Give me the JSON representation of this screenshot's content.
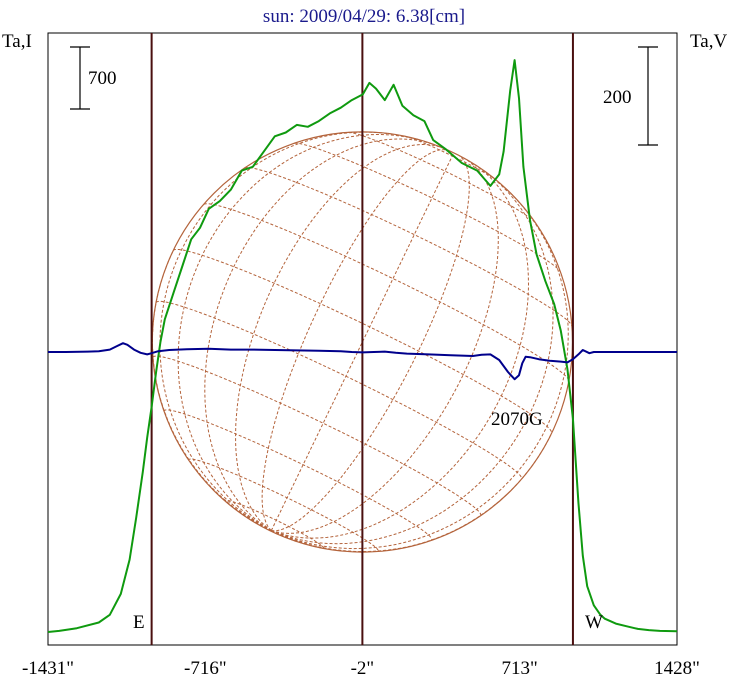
{
  "chart_data": {
    "type": "line",
    "title": "sun: 2009/04/29: 6.38[cm]",
    "left_axis_label": "Ta,I",
    "right_axis_label": "Ta,V",
    "scale_bar_left": "700",
    "scale_bar_right": "200",
    "xlim": [
      -1431,
      1428
    ],
    "x_ticks": [
      -1431,
      -716,
      -2,
      713,
      1428
    ],
    "x_tick_labels": [
      "-1431\"",
      "-716\"",
      "-2\"",
      "713\"",
      "1428\""
    ],
    "vertical_lines_x": [
      -960,
      -2,
      955
    ],
    "limb_labels": {
      "east": "E",
      "west": "W"
    },
    "annotations": [
      {
        "text": "2070G",
        "x": 700
      }
    ],
    "disk": {
      "center_x": -2,
      "radius": 955,
      "grid": "heliographic"
    },
    "colors": {
      "intensity": "#0f9a0f",
      "polarization": "#00008c",
      "disk": "#b4643c",
      "markers": "#4a0f0f",
      "title": "#1a1a8c"
    },
    "series": [
      {
        "name": "Ta,I",
        "color": "#0f9a0f",
        "x": [
          -1431,
          -1380,
          -1300,
          -1200,
          -1150,
          -1100,
          -1060,
          -1030,
          -1000,
          -980,
          -960,
          -940,
          -920,
          -900,
          -860,
          -820,
          -780,
          -740,
          -700,
          -650,
          -600,
          -550,
          -500,
          -450,
          -400,
          -350,
          -300,
          -250,
          -200,
          -150,
          -100,
          -50,
          0,
          30,
          60,
          100,
          140,
          180,
          230,
          280,
          320,
          380,
          450,
          520,
          580,
          620,
          640,
          670,
          690,
          710,
          730,
          760,
          790,
          830,
          870,
          900,
          930,
          955,
          980,
          1000,
          1020,
          1050,
          1080,
          1100,
          1150,
          1200,
          1250,
          1300,
          1350,
          1428
        ],
        "y": [
          0,
          3,
          10,
          25,
          45,
          100,
          190,
          300,
          420,
          510,
          590,
          680,
          760,
          820,
          890,
          960,
          1030,
          1060,
          1110,
          1130,
          1160,
          1210,
          1220,
          1260,
          1300,
          1310,
          1330,
          1325,
          1340,
          1360,
          1375,
          1395,
          1410,
          1440,
          1425,
          1395,
          1435,
          1380,
          1355,
          1340,
          1290,
          1265,
          1230,
          1210,
          1170,
          1200,
          1260,
          1420,
          1500,
          1400,
          1220,
          1080,
          990,
          920,
          860,
          790,
          690,
          560,
          340,
          200,
          120,
          70,
          45,
          35,
          22,
          15,
          8,
          5,
          3,
          2
        ]
      },
      {
        "name": "Ta,V",
        "color": "#00008c",
        "x": [
          -1431,
          -1350,
          -1250,
          -1200,
          -1150,
          -1120,
          -1090,
          -1070,
          -1040,
          -1010,
          -980,
          -960,
          -930,
          -880,
          -800,
          -700,
          -600,
          -500,
          -400,
          -300,
          -200,
          -100,
          -50,
          0,
          50,
          100,
          150,
          200,
          300,
          400,
          500,
          540,
          580,
          620,
          660,
          690,
          710,
          725,
          740,
          760,
          800,
          850,
          900,
          930,
          955,
          980,
          1000,
          1030,
          1050,
          1100,
          1200,
          1300,
          1428
        ],
        "y": [
          0,
          0,
          1,
          2,
          6,
          14,
          22,
          18,
          6,
          -2,
          -6,
          -3,
          2,
          5,
          7,
          8,
          6,
          6,
          5,
          4,
          3,
          2,
          0,
          -1,
          0,
          1,
          -2,
          -4,
          -6,
          -8,
          -10,
          -7,
          -6,
          -20,
          -50,
          -68,
          -58,
          -28,
          -12,
          -13,
          -18,
          -22,
          -24,
          -26,
          -18,
          -6,
          5,
          -3,
          0,
          0,
          0,
          0,
          0
        ]
      }
    ]
  }
}
